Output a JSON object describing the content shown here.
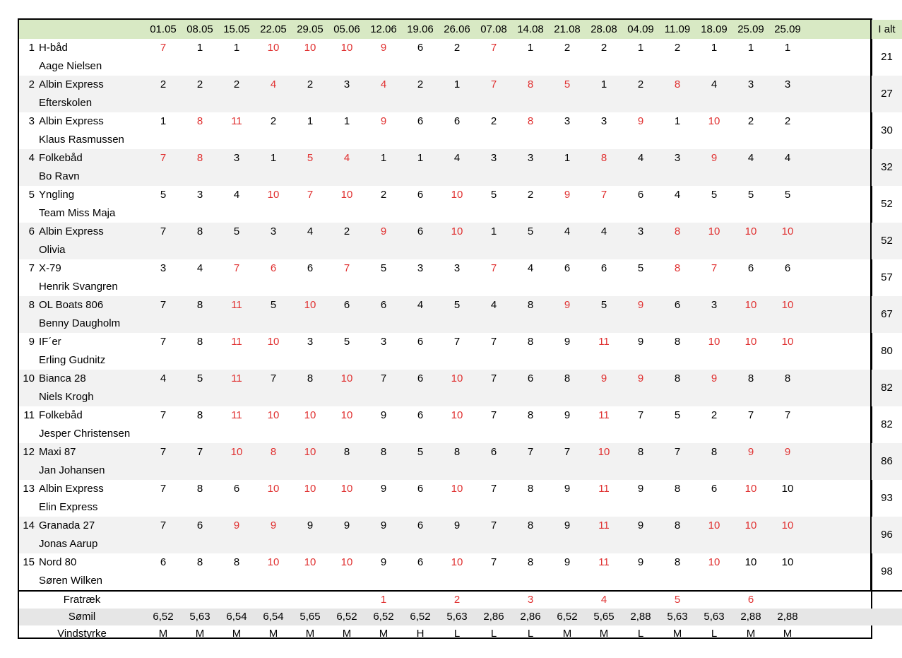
{
  "header": {
    "dates": [
      "01.05",
      "08.05",
      "15.05",
      "22.05",
      "29.05",
      "05.06",
      "12.06",
      "19.06",
      "26.06",
      "07.08",
      "14.08",
      "21.08",
      "28.08",
      "04.09",
      "11.09",
      "18.09",
      "25.09",
      "25.09"
    ],
    "total_label": "I alt"
  },
  "rows": [
    {
      "rank": "1",
      "boat": "H-båd",
      "skipper": "Aage Nielsen",
      "scores": [
        "7",
        "1",
        "1",
        "10",
        "10",
        "10",
        "9",
        "6",
        "2",
        "7",
        "1",
        "2",
        "2",
        "1",
        "2",
        "1",
        "1",
        "1"
      ],
      "red": [
        0,
        3,
        4,
        5,
        6,
        9
      ],
      "total": "21"
    },
    {
      "rank": "2",
      "boat": "Albin Express",
      "skipper": "Efterskolen",
      "scores": [
        "2",
        "2",
        "2",
        "4",
        "2",
        "3",
        "4",
        "2",
        "1",
        "7",
        "8",
        "5",
        "1",
        "2",
        "8",
        "4",
        "3",
        "3"
      ],
      "red": [
        3,
        6,
        9,
        10,
        11,
        14
      ],
      "total": "27"
    },
    {
      "rank": "3",
      "boat": "Albin Express",
      "skipper": "Klaus Rasmussen",
      "scores": [
        "1",
        "8",
        "11",
        "2",
        "1",
        "1",
        "9",
        "6",
        "6",
        "2",
        "8",
        "3",
        "3",
        "9",
        "1",
        "10",
        "2",
        "2"
      ],
      "red": [
        1,
        2,
        6,
        10,
        13,
        15
      ],
      "total": "30"
    },
    {
      "rank": "4",
      "boat": "Folkebåd",
      "skipper": "Bo Ravn",
      "scores": [
        "7",
        "8",
        "3",
        "1",
        "5",
        "4",
        "1",
        "1",
        "4",
        "3",
        "3",
        "1",
        "8",
        "4",
        "3",
        "9",
        "4",
        "4"
      ],
      "red": [
        0,
        1,
        4,
        5,
        12,
        15
      ],
      "total": "32"
    },
    {
      "rank": "5",
      "boat": "Yngling",
      "skipper": "Team Miss Maja",
      "scores": [
        "5",
        "3",
        "4",
        "10",
        "7",
        "10",
        "2",
        "6",
        "10",
        "5",
        "2",
        "9",
        "7",
        "6",
        "4",
        "5",
        "5",
        "5"
      ],
      "red": [
        3,
        4,
        5,
        8,
        11,
        12
      ],
      "total": "52"
    },
    {
      "rank": "6",
      "boat": "Albin Express",
      "skipper": "Olivia",
      "scores": [
        "7",
        "8",
        "5",
        "3",
        "4",
        "2",
        "9",
        "6",
        "10",
        "1",
        "5",
        "4",
        "4",
        "3",
        "8",
        "10",
        "10",
        "10"
      ],
      "red": [
        6,
        8,
        14,
        15,
        16,
        17
      ],
      "total": "52"
    },
    {
      "rank": "7",
      "boat": "X-79",
      "skipper": "Henrik Svangren",
      "scores": [
        "3",
        "4",
        "7",
        "6",
        "6",
        "7",
        "5",
        "3",
        "3",
        "7",
        "4",
        "6",
        "6",
        "5",
        "8",
        "7",
        "6",
        "6"
      ],
      "red": [
        2,
        3,
        5,
        9,
        14,
        15
      ],
      "total": "57"
    },
    {
      "rank": "8",
      "boat": "OL Boats 806",
      "skipper": "Benny Daugholm",
      "scores": [
        "7",
        "8",
        "11",
        "5",
        "10",
        "6",
        "6",
        "4",
        "5",
        "4",
        "8",
        "9",
        "5",
        "9",
        "6",
        "3",
        "10",
        "10"
      ],
      "red": [
        2,
        4,
        11,
        13,
        16,
        17
      ],
      "total": "67"
    },
    {
      "rank": "9",
      "boat": "IF´er",
      "skipper": "Erling Gudnitz",
      "scores": [
        "7",
        "8",
        "11",
        "10",
        "3",
        "5",
        "3",
        "6",
        "7",
        "7",
        "8",
        "9",
        "11",
        "9",
        "8",
        "10",
        "10",
        "10"
      ],
      "red": [
        2,
        3,
        12,
        15,
        16,
        17
      ],
      "total": "80"
    },
    {
      "rank": "10",
      "boat": "Bianca 28",
      "skipper": "Niels Krogh",
      "scores": [
        "4",
        "5",
        "11",
        "7",
        "8",
        "10",
        "7",
        "6",
        "10",
        "7",
        "6",
        "8",
        "9",
        "9",
        "8",
        "9",
        "8",
        "8"
      ],
      "red": [
        2,
        5,
        8,
        12,
        13,
        15
      ],
      "total": "82"
    },
    {
      "rank": "11",
      "boat": "Folkebåd",
      "skipper": "Jesper Christensen",
      "scores": [
        "7",
        "8",
        "11",
        "10",
        "10",
        "10",
        "9",
        "6",
        "10",
        "7",
        "8",
        "9",
        "11",
        "7",
        "5",
        "2",
        "7",
        "7"
      ],
      "red": [
        2,
        3,
        4,
        5,
        8,
        12
      ],
      "total": "82"
    },
    {
      "rank": "12",
      "boat": "Maxi 87",
      "skipper": "Jan Johansen",
      "scores": [
        "7",
        "7",
        "10",
        "8",
        "10",
        "8",
        "8",
        "5",
        "8",
        "6",
        "7",
        "7",
        "10",
        "8",
        "7",
        "8",
        "9",
        "9"
      ],
      "red": [
        2,
        3,
        4,
        12,
        16,
        17
      ],
      "total": "86"
    },
    {
      "rank": "13",
      "boat": "Albin Express",
      "skipper": "Elin Express",
      "scores": [
        "7",
        "8",
        "6",
        "10",
        "10",
        "10",
        "9",
        "6",
        "10",
        "7",
        "8",
        "9",
        "11",
        "9",
        "8",
        "6",
        "10",
        "10"
      ],
      "red": [
        3,
        4,
        5,
        8,
        12,
        16
      ],
      "total": "93"
    },
    {
      "rank": "14",
      "boat": "Granada 27",
      "skipper": "Jonas Aarup",
      "scores": [
        "7",
        "6",
        "9",
        "9",
        "9",
        "9",
        "9",
        "6",
        "9",
        "7",
        "8",
        "9",
        "11",
        "9",
        "8",
        "10",
        "10",
        "10"
      ],
      "red": [
        2,
        3,
        12,
        15,
        16,
        17
      ],
      "total": "96"
    },
    {
      "rank": "15",
      "boat": "Nord 80",
      "skipper": "Søren Wilken",
      "scores": [
        "6",
        "8",
        "8",
        "10",
        "10",
        "10",
        "9",
        "6",
        "10",
        "7",
        "8",
        "9",
        "11",
        "9",
        "8",
        "10",
        "10",
        "10"
      ],
      "red": [
        3,
        4,
        5,
        8,
        12,
        15
      ],
      "total": "98"
    }
  ],
  "footer": {
    "fratraek_label": "Fratræk",
    "fratraek": [
      "",
      "",
      "",
      "",
      "",
      "",
      "1",
      "",
      "2",
      "",
      "3",
      "",
      "4",
      "",
      "5",
      "",
      "6",
      ""
    ],
    "somil_label": "Sømil",
    "somil": [
      "6,52",
      "5,63",
      "6,54",
      "6,54",
      "5,65",
      "6,52",
      "6,52",
      "6,52",
      "5,63",
      "2,86",
      "2,86",
      "6,52",
      "5,65",
      "2,88",
      "5,63",
      "5,63",
      "2,88",
      "2,88"
    ],
    "vind_label": "Vindstyrke",
    "vind": [
      "M",
      "M",
      "M",
      "M",
      "M",
      "M",
      "M",
      "H",
      "L",
      "L",
      "L",
      "M",
      "M",
      "L",
      "M",
      "L",
      "M",
      "M"
    ]
  }
}
